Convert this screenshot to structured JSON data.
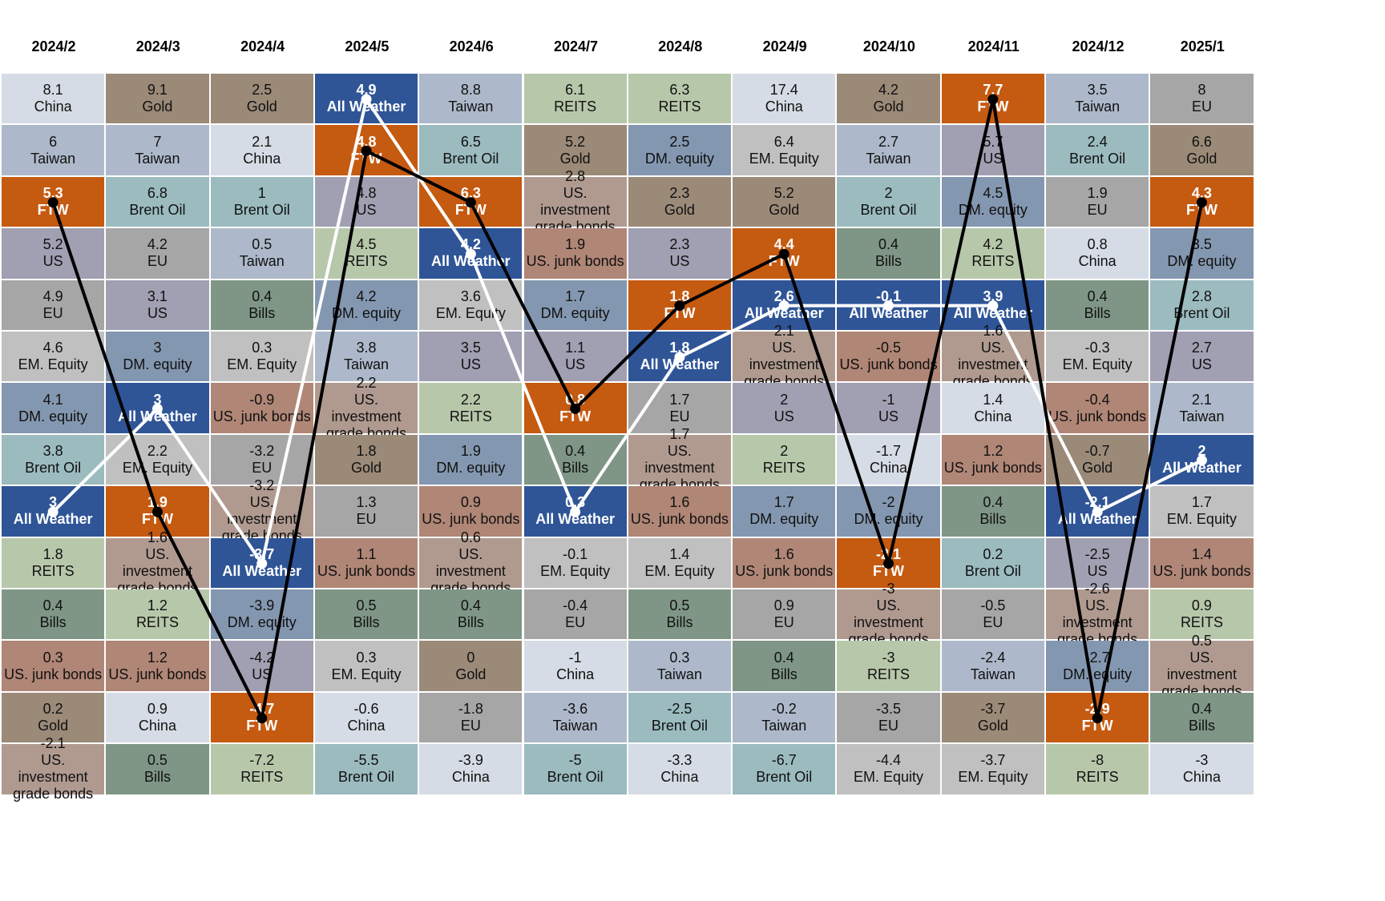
{
  "chart_data": {
    "type": "table",
    "title": "",
    "columns": [
      "2024/2",
      "2024/3",
      "2024/4",
      "2024/5",
      "2024/6",
      "2024/7",
      "2024/8",
      "2024/9",
      "2024/10",
      "2024/11",
      "2024/12",
      "2025/1"
    ],
    "cells": [
      [
        [
          8.1,
          "China"
        ],
        [
          6,
          "Taiwan"
        ],
        [
          5.3,
          "FTW"
        ],
        [
          5.2,
          "US"
        ],
        [
          4.9,
          "EU"
        ],
        [
          4.6,
          "EM. Equity"
        ],
        [
          4.1,
          "DM. equity"
        ],
        [
          3.8,
          "Brent Oil"
        ],
        [
          3,
          "All Weather"
        ],
        [
          1.8,
          "REITS"
        ],
        [
          0.4,
          "Bills"
        ],
        [
          0.3,
          "US. junk bonds"
        ],
        [
          0.2,
          "Gold"
        ],
        [
          -2.1,
          "US. investment grade bonds"
        ]
      ],
      [
        [
          9.1,
          "Gold"
        ],
        [
          7,
          "Taiwan"
        ],
        [
          6.8,
          "Brent Oil"
        ],
        [
          4.2,
          "EU"
        ],
        [
          3.1,
          "US"
        ],
        [
          3,
          "DM. equity"
        ],
        [
          3,
          "All Weather"
        ],
        [
          2.2,
          "EM. Equity"
        ],
        [
          1.9,
          "FTW"
        ],
        [
          1.6,
          "US. investment grade bonds"
        ],
        [
          1.2,
          "REITS"
        ],
        [
          1.2,
          "US. junk bonds"
        ],
        [
          0.9,
          "China"
        ],
        [
          0.5,
          "Bills"
        ]
      ],
      [
        [
          2.5,
          "Gold"
        ],
        [
          2.1,
          "China"
        ],
        [
          1,
          "Brent Oil"
        ],
        [
          0.5,
          "Taiwan"
        ],
        [
          0.4,
          "Bills"
        ],
        [
          0.3,
          "EM. Equity"
        ],
        [
          -0.9,
          "US. junk bonds"
        ],
        [
          -3.2,
          "EU"
        ],
        [
          -3.2,
          "US. investment grade bonds"
        ],
        [
          -3.7,
          "All Weather"
        ],
        [
          -3.9,
          "DM. equity"
        ],
        [
          -4.2,
          "US"
        ],
        [
          -4.7,
          "FTW"
        ],
        [
          -7.2,
          "REITS"
        ]
      ],
      [
        [
          4.9,
          "All Weather"
        ],
        [
          4.8,
          "FTW"
        ],
        [
          4.8,
          "US"
        ],
        [
          4.5,
          "REITS"
        ],
        [
          4.2,
          "DM. equity"
        ],
        [
          3.8,
          "Taiwan"
        ],
        [
          2.2,
          "US. investment grade bonds"
        ],
        [
          1.8,
          "Gold"
        ],
        [
          1.3,
          "EU"
        ],
        [
          1.1,
          "US. junk bonds"
        ],
        [
          0.5,
          "Bills"
        ],
        [
          0.3,
          "EM. Equity"
        ],
        [
          -0.6,
          "China"
        ],
        [
          -5.5,
          "Brent Oil"
        ]
      ],
      [
        [
          8.8,
          "Taiwan"
        ],
        [
          6.5,
          "Brent Oil"
        ],
        [
          6.3,
          "FTW"
        ],
        [
          4.2,
          "All Weather"
        ],
        [
          3.6,
          "EM. Equity"
        ],
        [
          3.5,
          "US"
        ],
        [
          2.2,
          "REITS"
        ],
        [
          1.9,
          "DM. equity"
        ],
        [
          0.9,
          "US. junk bonds"
        ],
        [
          0.6,
          "US. investment grade bonds"
        ],
        [
          0.4,
          "Bills"
        ],
        [
          0,
          "Gold"
        ],
        [
          -1.8,
          "EU"
        ],
        [
          -3.9,
          "China"
        ]
      ],
      [
        [
          6.1,
          "REITS"
        ],
        [
          5.2,
          "Gold"
        ],
        [
          2.8,
          "US. investment grade bonds"
        ],
        [
          1.9,
          "US. junk bonds"
        ],
        [
          1.7,
          "DM. equity"
        ],
        [
          1.1,
          "US"
        ],
        [
          0.8,
          "FTW"
        ],
        [
          0.4,
          "Bills"
        ],
        [
          0.3,
          "All Weather"
        ],
        [
          -0.1,
          "EM. Equity"
        ],
        [
          -0.4,
          "EU"
        ],
        [
          -1,
          "China"
        ],
        [
          -3.6,
          "Taiwan"
        ],
        [
          -5,
          "Brent Oil"
        ]
      ],
      [
        [
          6.3,
          "REITS"
        ],
        [
          2.5,
          "DM. equity"
        ],
        [
          2.3,
          "Gold"
        ],
        [
          2.3,
          "US"
        ],
        [
          1.8,
          "FTW"
        ],
        [
          1.8,
          "All Weather"
        ],
        [
          1.7,
          "EU"
        ],
        [
          1.7,
          "US. investment grade bonds"
        ],
        [
          1.6,
          "US. junk bonds"
        ],
        [
          1.4,
          "EM. Equity"
        ],
        [
          0.5,
          "Bills"
        ],
        [
          0.3,
          "Taiwan"
        ],
        [
          -2.5,
          "Brent Oil"
        ],
        [
          -3.3,
          "China"
        ]
      ],
      [
        [
          17.4,
          "China"
        ],
        [
          6.4,
          "EM. Equity"
        ],
        [
          5.2,
          "Gold"
        ],
        [
          4.4,
          "FTW"
        ],
        [
          2.6,
          "All Weather"
        ],
        [
          2.1,
          "US. investment grade bonds"
        ],
        [
          2,
          "US"
        ],
        [
          2,
          "REITS"
        ],
        [
          1.7,
          "DM. equity"
        ],
        [
          1.6,
          "US. junk bonds"
        ],
        [
          0.9,
          "EU"
        ],
        [
          0.4,
          "Bills"
        ],
        [
          -0.2,
          "Taiwan"
        ],
        [
          -6.7,
          "Brent Oil"
        ]
      ],
      [
        [
          4.2,
          "Gold"
        ],
        [
          2.7,
          "Taiwan"
        ],
        [
          2,
          "Brent Oil"
        ],
        [
          0.4,
          "Bills"
        ],
        [
          -0.1,
          "All Weather"
        ],
        [
          -0.5,
          "US. junk bonds"
        ],
        [
          -1,
          "US"
        ],
        [
          -1.7,
          "China"
        ],
        [
          -2,
          "DM. equity"
        ],
        [
          -2.1,
          "FTW"
        ],
        [
          -3,
          "US. investment grade bonds"
        ],
        [
          -3,
          "REITS"
        ],
        [
          -3.5,
          "EU"
        ],
        [
          -4.4,
          "EM. Equity"
        ]
      ],
      [
        [
          7.7,
          "FTW"
        ],
        [
          5.7,
          "US"
        ],
        [
          4.5,
          "DM. equity"
        ],
        [
          4.2,
          "REITS"
        ],
        [
          3.9,
          "All Weather"
        ],
        [
          1.6,
          "US. investment grade bonds"
        ],
        [
          1.4,
          "China"
        ],
        [
          1.2,
          "US. junk bonds"
        ],
        [
          0.4,
          "Bills"
        ],
        [
          0.2,
          "Brent Oil"
        ],
        [
          -0.5,
          "EU"
        ],
        [
          -2.4,
          "Taiwan"
        ],
        [
          -3.7,
          "Gold"
        ],
        [
          -3.7,
          "EM. Equity"
        ]
      ],
      [
        [
          3.5,
          "Taiwan"
        ],
        [
          2.4,
          "Brent Oil"
        ],
        [
          1.9,
          "EU"
        ],
        [
          0.8,
          "China"
        ],
        [
          0.4,
          "Bills"
        ],
        [
          -0.3,
          "EM. Equity"
        ],
        [
          -0.4,
          "US. junk bonds"
        ],
        [
          -0.7,
          "Gold"
        ],
        [
          -2.1,
          "All Weather"
        ],
        [
          -2.5,
          "US"
        ],
        [
          -2.6,
          "US. investment grade bonds"
        ],
        [
          -2.7,
          "DM. equity"
        ],
        [
          -2.9,
          "FTW"
        ],
        [
          -8,
          "REITS"
        ]
      ],
      [
        [
          8,
          "EU"
        ],
        [
          6.6,
          "Gold"
        ],
        [
          4.3,
          "FTW"
        ],
        [
          3.5,
          "DM. equity"
        ],
        [
          2.8,
          "Brent Oil"
        ],
        [
          2.7,
          "US"
        ],
        [
          2.1,
          "Taiwan"
        ],
        [
          2,
          "All Weather"
        ],
        [
          1.7,
          "EM. Equity"
        ],
        [
          1.4,
          "US. junk bonds"
        ],
        [
          0.9,
          "REITS"
        ],
        [
          0.5,
          "US. investment grade bonds"
        ],
        [
          0.4,
          "Bills"
        ],
        [
          -3,
          "China"
        ]
      ]
    ],
    "colors": {
      "China": "#d6dce5",
      "Gold": "#9b8a78",
      "Taiwan": "#adb9ca",
      "FTW": "#c55a11",
      "All Weather": "#2f5597",
      "US": "#a19fb2",
      "EU": "#a6a6a6",
      "EM. Equity": "#c0c0c0",
      "DM. equity": "#8497b0",
      "Brent Oil": "#9bbbbf",
      "REITS": "#b7c8aa",
      "Bills": "#7f9686",
      "US. junk bonds": "#b08676",
      "US. investment grade bonds": "#b09a90"
    },
    "highlighted": [
      "FTW",
      "All Weather"
    ],
    "line_series": [
      {
        "asset": "FTW",
        "line_color": "#000000"
      },
      {
        "asset": "All Weather",
        "line_color": "#ffffff"
      }
    ]
  }
}
